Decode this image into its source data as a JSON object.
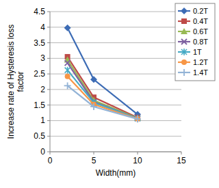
{
  "chart_data": {
    "type": "line",
    "x_label": "Width(mm)",
    "y_label": "Increase rate of Hysteresis loss factor",
    "x": [
      2,
      5,
      10
    ],
    "xlim": [
      0,
      15
    ],
    "xticks": [
      0,
      5,
      10,
      15
    ],
    "ylim": [
      0,
      4.5
    ],
    "yticks": [
      0,
      0.5,
      1,
      1.5,
      2,
      2.5,
      3,
      3.5,
      4,
      4.5
    ],
    "grid": true,
    "legend": "upper right",
    "series": [
      {
        "name": "0.2T",
        "color": "#3d6cb5",
        "marker": "diamond",
        "values": [
          3.98,
          2.32,
          1.2
        ]
      },
      {
        "name": "0.4T",
        "color": "#be4b48",
        "marker": "square",
        "values": [
          3.05,
          1.75,
          1.1
        ]
      },
      {
        "name": "0.6T",
        "color": "#98b954",
        "marker": "triangle",
        "values": [
          2.95,
          1.65,
          1.08
        ]
      },
      {
        "name": "0.8T",
        "color": "#7d60a0",
        "marker": "x",
        "values": [
          2.85,
          1.6,
          1.07
        ]
      },
      {
        "name": "1T",
        "color": "#46aac5",
        "marker": "star",
        "values": [
          2.62,
          1.58,
          1.07
        ]
      },
      {
        "name": "1.2T",
        "color": "#f79646",
        "marker": "circle",
        "values": [
          2.42,
          1.52,
          1.06
        ]
      },
      {
        "name": "1.4T",
        "color": "#93b3d6",
        "marker": "plus",
        "values": [
          2.12,
          1.45,
          1.05
        ]
      }
    ]
  }
}
